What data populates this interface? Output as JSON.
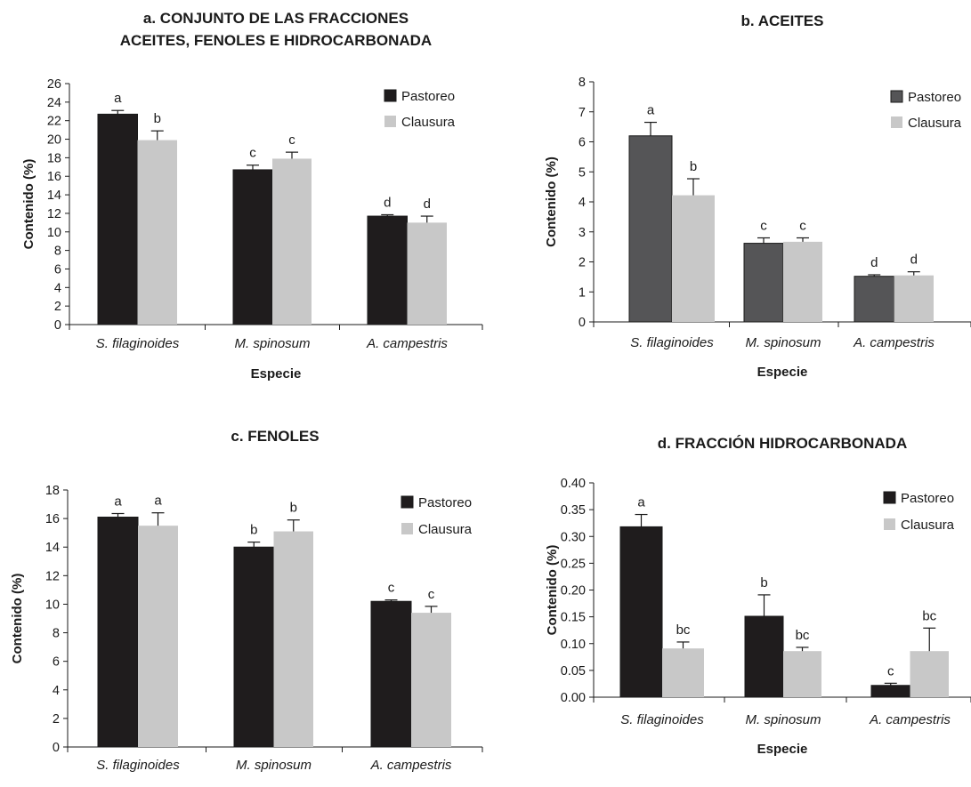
{
  "colors": {
    "pastoreo": "#1f1c1d",
    "pastoreo_aceites": "#555557",
    "clausura": "#c8c8c8",
    "axis": "#1a1a1a"
  },
  "chart_data": [
    {
      "type": "bar",
      "title": [
        "a. CONJUNTO DE LAS FRACCIONES",
        "ACEITES, FENOLES E HIDROCARBONADA"
      ],
      "xlabel": "Especie",
      "ylabel": "Contenido (%)",
      "categories": [
        "S. filaginoides",
        "M. spinosum",
        "A. campestris"
      ],
      "ylim": [
        0,
        26
      ],
      "yticks": [
        "0",
        "2",
        "4",
        "6",
        "8",
        "10",
        "12",
        "14",
        "16",
        "18",
        "20",
        "22",
        "24",
        "26"
      ],
      "legend_position": "top-right",
      "series": [
        {
          "name": "Pastoreo",
          "values": [
            22.7,
            16.7,
            11.7
          ],
          "errors": [
            0.4,
            0.5,
            0.15
          ],
          "labels": [
            "a",
            "c",
            "d"
          ]
        },
        {
          "name": "Clausura",
          "values": [
            19.9,
            17.9,
            11.0
          ],
          "errors": [
            1.0,
            0.7,
            0.7
          ],
          "labels": [
            "b",
            "c",
            "d"
          ]
        }
      ]
    },
    {
      "type": "bar",
      "title": [
        "b. ACEITES"
      ],
      "xlabel": "Especie",
      "ylabel": "Contenido (%)",
      "categories": [
        "S. filaginoides",
        "M. spinosum",
        "A. campestris"
      ],
      "ylim": [
        0,
        8
      ],
      "yticks": [
        "0",
        "1",
        "2",
        "3",
        "4",
        "5",
        "6",
        "7",
        "8"
      ],
      "legend_position": "top-right",
      "series": [
        {
          "name": "Pastoreo",
          "values": [
            6.2,
            2.62,
            1.52
          ],
          "errors": [
            0.45,
            0.18,
            0.05
          ],
          "labels": [
            "a",
            "c",
            "d"
          ]
        },
        {
          "name": "Clausura",
          "values": [
            4.22,
            2.67,
            1.55
          ],
          "errors": [
            0.55,
            0.13,
            0.12
          ],
          "labels": [
            "b",
            "c",
            "d"
          ]
        }
      ]
    },
    {
      "type": "bar",
      "title": [
        "c. FENOLES"
      ],
      "xlabel": "Especie",
      "ylabel": "Contenido (%)",
      "categories": [
        "S. filaginoides",
        "M. spinosum",
        "A. campestris"
      ],
      "ylim": [
        0,
        18
      ],
      "yticks": [
        "0",
        "2",
        "4",
        "6",
        "8",
        "10",
        "12",
        "14",
        "16",
        "18"
      ],
      "legend_position": "top-right",
      "series": [
        {
          "name": "Pastoreo",
          "values": [
            16.1,
            14.0,
            10.2
          ],
          "errors": [
            0.25,
            0.35,
            0.1
          ],
          "labels": [
            "a",
            "b",
            "c"
          ]
        },
        {
          "name": "Clausura",
          "values": [
            15.5,
            15.1,
            9.4
          ],
          "errors": [
            0.9,
            0.8,
            0.45
          ],
          "labels": [
            "a",
            "b",
            "c"
          ]
        }
      ]
    },
    {
      "type": "bar",
      "title": [
        "d. FRACCIÓN HIDROCARBONADA"
      ],
      "xlabel": "Especie",
      "ylabel": "Contenido (%)",
      "categories": [
        "S. filaginoides",
        "M. spinosum",
        "A. campestris"
      ],
      "ylim": [
        0,
        0.4
      ],
      "yticks": [
        "0.00",
        "0.05",
        "0.10",
        "0.15",
        "0.20",
        "0.25",
        "0.30",
        "0.35",
        "0.40"
      ],
      "legend_position": "top-right",
      "series": [
        {
          "name": "Pastoreo",
          "values": [
            0.318,
            0.151,
            0.022
          ],
          "errors": [
            0.023,
            0.04,
            0.004
          ],
          "labels": [
            "a",
            "b",
            "c"
          ]
        },
        {
          "name": "Clausura",
          "values": [
            0.091,
            0.086,
            0.086
          ],
          "errors": [
            0.012,
            0.007,
            0.043
          ],
          "labels": [
            "bc",
            "bc",
            "bc"
          ]
        }
      ]
    }
  ]
}
